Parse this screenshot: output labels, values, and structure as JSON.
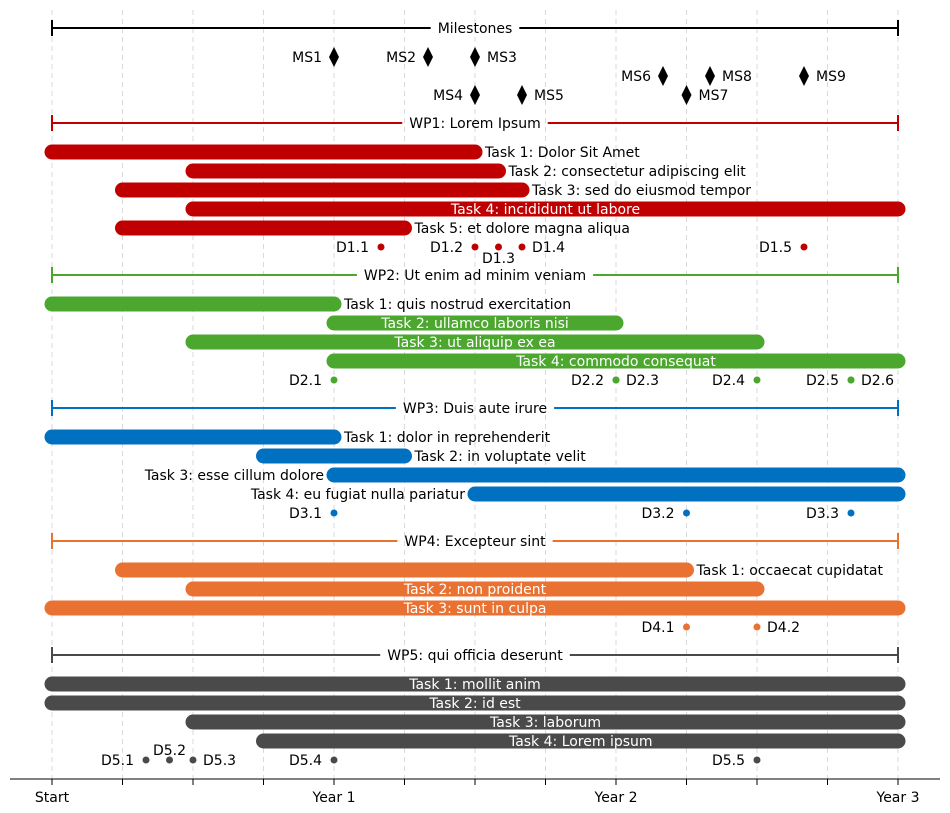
{
  "chart_data": {
    "type": "gantt",
    "x_range": [
      0,
      36
    ],
    "x_ticks": [
      {
        "month": 0,
        "label": "Start"
      },
      {
        "month": 12,
        "label": "Year 1"
      },
      {
        "month": 24,
        "label": "Year 2"
      },
      {
        "month": 36,
        "label": "Year 3"
      }
    ],
    "minor_gridlines_every_months": 3,
    "milestones": {
      "title": "Milestones",
      "color": "#000000",
      "items": [
        {
          "label": "MS1",
          "month": 12,
          "row": 0,
          "label_side": "left"
        },
        {
          "label": "MS2",
          "month": 16,
          "row": 0,
          "label_side": "left"
        },
        {
          "label": "MS3",
          "month": 18,
          "row": 0,
          "label_side": "right"
        },
        {
          "label": "MS6",
          "month": 26,
          "row": 1,
          "label_side": "left"
        },
        {
          "label": "MS8",
          "month": 28,
          "row": 1,
          "label_side": "right"
        },
        {
          "label": "MS9",
          "month": 32,
          "row": 1,
          "label_side": "right"
        },
        {
          "label": "MS4",
          "month": 18,
          "row": 2,
          "label_side": "left"
        },
        {
          "label": "MS5",
          "month": 20,
          "row": 2,
          "label_side": "right"
        },
        {
          "label": "MS7",
          "month": 27,
          "row": 2,
          "label_side": "right"
        }
      ]
    },
    "work_packages": [
      {
        "title": "WP1: Lorem Ipsum",
        "color": "#c00000",
        "tasks": [
          {
            "label": "Task 1: Dolor Sit Amet",
            "start": 0,
            "end": 18,
            "label_pos": "right"
          },
          {
            "label": "Task 2: consectetur adipiscing elit",
            "start": 6,
            "end": 19,
            "label_pos": "right"
          },
          {
            "label": "Task 3: sed do eiusmod tempor",
            "start": 3,
            "end": 20,
            "label_pos": "right"
          },
          {
            "label": "Task 4: incididunt ut labore",
            "start": 6,
            "end": 36,
            "label_pos": "inside"
          },
          {
            "label": "Task 5: et dolore magna aliqua",
            "start": 3,
            "end": 15,
            "label_pos": "right"
          }
        ],
        "deliverables": [
          {
            "label": "D1.1",
            "month": 14,
            "label_side": "left"
          },
          {
            "label": "D1.2",
            "month": 18,
            "label_side": "left"
          },
          {
            "label": "D1.3",
            "month": 19,
            "label_side": "below"
          },
          {
            "label": "D1.4",
            "month": 20,
            "label_side": "right"
          },
          {
            "label": "D1.5",
            "month": 32,
            "label_side": "left"
          }
        ]
      },
      {
        "title": "WP2: Ut enim ad minim veniam",
        "color": "#4ca72f",
        "tasks": [
          {
            "label": "Task 1: quis nostrud exercitation",
            "start": 0,
            "end": 12,
            "label_pos": "right"
          },
          {
            "label": "Task 2: ullamco laboris nisi",
            "start": 12,
            "end": 24,
            "label_pos": "inside"
          },
          {
            "label": "Task 3: ut aliquip ex ea",
            "start": 6,
            "end": 30,
            "label_pos": "inside"
          },
          {
            "label": "Task 4: commodo consequat",
            "start": 12,
            "end": 36,
            "label_pos": "inside"
          }
        ],
        "deliverables": [
          {
            "label": "D2.1",
            "month": 12,
            "label_side": "left"
          },
          {
            "label": "D2.2",
            "month": 24,
            "label_side": "left"
          },
          {
            "label": "D2.3",
            "month": 24,
            "label_side": "right"
          },
          {
            "label": "D2.4",
            "month": 30,
            "label_side": "left"
          },
          {
            "label": "D2.5",
            "month": 34,
            "label_side": "left"
          },
          {
            "label": "D2.6",
            "month": 34,
            "label_side": "right"
          }
        ]
      },
      {
        "title": "WP3: Duis aute irure",
        "color": "#0070c0",
        "tasks": [
          {
            "label": "Task 1: dolor in reprehenderit",
            "start": 0,
            "end": 12,
            "label_pos": "right"
          },
          {
            "label": "Task 2: in voluptate velit",
            "start": 9,
            "end": 15,
            "label_pos": "right"
          },
          {
            "label": "Task 3: esse cillum dolore",
            "start": 12,
            "end": 36,
            "label_pos": "left"
          },
          {
            "label": "Task 4: eu fugiat nulla pariatur",
            "start": 18,
            "end": 36,
            "label_pos": "left"
          }
        ],
        "deliverables": [
          {
            "label": "D3.1",
            "month": 12,
            "label_side": "left"
          },
          {
            "label": "D3.2",
            "month": 27,
            "label_side": "left"
          },
          {
            "label": "D3.3",
            "month": 34,
            "label_side": "left"
          }
        ]
      },
      {
        "title": "WP4: Excepteur sint",
        "color": "#e97132",
        "tasks": [
          {
            "label": "Task 1: occaecat cupidatat",
            "start": 3,
            "end": 27,
            "label_pos": "right"
          },
          {
            "label": "Task 2: non proident",
            "start": 6,
            "end": 30,
            "label_pos": "inside"
          },
          {
            "label": "Task 3: sunt in culpa",
            "start": 0,
            "end": 36,
            "label_pos": "inside"
          }
        ],
        "deliverables": [
          {
            "label": "D4.1",
            "month": 27,
            "label_side": "left"
          },
          {
            "label": "D4.2",
            "month": 30,
            "label_side": "right"
          }
        ]
      },
      {
        "title": "WP5: qui officia deserunt",
        "color": "#4a4a4a",
        "tasks": [
          {
            "label": "Task 1: mollit anim",
            "start": 0,
            "end": 36,
            "label_pos": "inside"
          },
          {
            "label": "Task 2: id est",
            "start": 0,
            "end": 36,
            "label_pos": "inside"
          },
          {
            "label": "Task 3: laborum",
            "start": 6,
            "end": 36,
            "label_pos": "inside"
          },
          {
            "label": "Task 4: Lorem ipsum",
            "start": 9,
            "end": 36,
            "label_pos": "inside"
          }
        ],
        "deliverables": [
          {
            "label": "D5.1",
            "month": 4,
            "label_side": "left"
          },
          {
            "label": "D5.2",
            "month": 5,
            "label_side": "above"
          },
          {
            "label": "D5.3",
            "month": 6,
            "label_side": "right"
          },
          {
            "label": "D5.4",
            "month": 12,
            "label_side": "left"
          },
          {
            "label": "D5.5",
            "month": 30,
            "label_side": "left"
          }
        ]
      }
    ]
  }
}
